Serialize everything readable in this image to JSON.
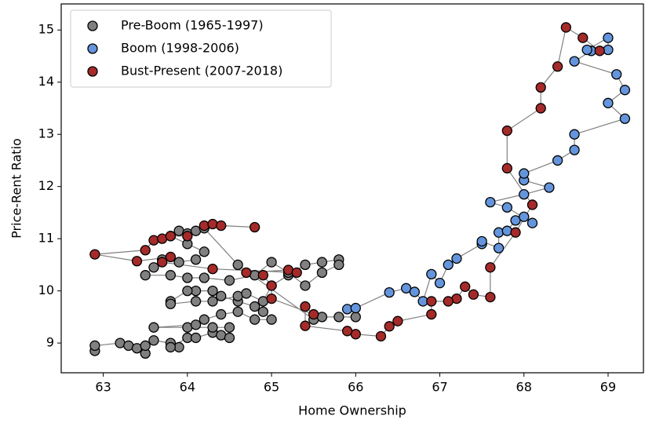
{
  "chart_data": {
    "type": "scatter",
    "connected": true,
    "line_color": "#808080",
    "xlabel": "Home Ownership",
    "ylabel": "Price-Rent Ratio",
    "xlim": [
      62.5,
      69.42
    ],
    "ylim": [
      8.43,
      15.5
    ],
    "xticks": [
      63,
      64,
      65,
      66,
      67,
      68,
      69
    ],
    "yticks": [
      9,
      10,
      11,
      12,
      13,
      14,
      15
    ],
    "legend": "upper left",
    "series": [
      {
        "name": "Pre-Boom (1965-1997)",
        "color": "#808080",
        "x": [
          62.9,
          62.9,
          63.2,
          63.3,
          63.4,
          63.5,
          63.5,
          63.6,
          63.8,
          63.9,
          63.8,
          64.0,
          64.1,
          64.3,
          64.4,
          64.5,
          64.5,
          64.3,
          64.0,
          63.6,
          64.1,
          64.2,
          64.4,
          64.6,
          64.8,
          65.0,
          64.9,
          64.8,
          64.6,
          64.4,
          64.3,
          64.1,
          64.0,
          63.8,
          63.8,
          64.1,
          64.3,
          64.6,
          64.7,
          64.9,
          65.0,
          65.2,
          65.4,
          65.6,
          65.8,
          65.8,
          65.6,
          65.4,
          65.2,
          65.0,
          64.8,
          64.5,
          64.2,
          64.0,
          63.8,
          63.5,
          63.6,
          63.7,
          63.9,
          64.1,
          64.2,
          64.0,
          63.8,
          63.9,
          64.0,
          64.1,
          64.2,
          64.6,
          65.5,
          65.6,
          65.8,
          66.0
        ],
        "values": [
          8.85,
          8.95,
          9.0,
          8.95,
          8.9,
          8.8,
          8.95,
          9.05,
          9.0,
          8.92,
          8.92,
          9.1,
          9.1,
          9.2,
          9.15,
          9.1,
          9.3,
          9.3,
          9.3,
          9.3,
          9.35,
          9.45,
          9.55,
          9.6,
          9.45,
          9.45,
          9.6,
          9.7,
          9.8,
          9.9,
          10.0,
          10.0,
          10.0,
          9.8,
          9.75,
          9.8,
          9.8,
          9.9,
          9.95,
          9.8,
          10.1,
          10.3,
          10.5,
          10.55,
          10.6,
          10.5,
          10.35,
          10.1,
          10.35,
          10.55,
          10.3,
          10.2,
          10.25,
          10.25,
          10.3,
          10.3,
          10.45,
          10.6,
          10.55,
          10.6,
          10.75,
          10.9,
          11.05,
          11.15,
          11.1,
          11.15,
          11.2,
          10.5,
          9.45,
          9.5,
          9.5,
          9.5
        ]
      },
      {
        "name": "Boom (1998-2006)",
        "color": "#6495dc",
        "x": [
          65.9,
          66.0,
          66.4,
          66.6,
          66.7,
          66.8,
          66.9,
          67.0,
          67.1,
          67.2,
          67.5,
          67.5,
          67.7,
          67.7,
          67.8,
          67.9,
          68.0,
          68.1,
          67.8,
          67.6,
          68.0,
          68.3,
          68.0,
          68.0,
          68.4,
          68.6,
          68.6,
          69.2,
          69.0,
          69.2,
          69.1,
          68.6,
          68.8,
          68.75,
          69.0,
          69.0
        ],
        "values": [
          9.65,
          9.67,
          9.97,
          10.05,
          9.98,
          9.8,
          10.32,
          10.15,
          10.5,
          10.62,
          10.9,
          10.95,
          10.82,
          11.12,
          11.15,
          11.35,
          11.42,
          11.3,
          11.6,
          11.7,
          11.85,
          11.98,
          12.12,
          12.25,
          12.5,
          12.7,
          13.0,
          13.3,
          13.6,
          13.85,
          14.15,
          14.4,
          14.6,
          14.62,
          14.85,
          14.62
        ]
      },
      {
        "name": "Bust-Present (2007-2018)",
        "color": "#a52a2a",
        "x": [
          68.9,
          68.7,
          68.5,
          68.4,
          68.2,
          68.2,
          67.8,
          67.8,
          68.1,
          67.9,
          67.6,
          67.6,
          67.4,
          67.3,
          67.2,
          67.1,
          66.9,
          66.9,
          66.5,
          66.4,
          66.3,
          66.0,
          65.9,
          65.4,
          65.4,
          65.5,
          65.0,
          65.0,
          64.9,
          64.7,
          65.2,
          65.3,
          64.3,
          63.7,
          63.8,
          63.4,
          62.9,
          63.5,
          63.6,
          63.7,
          63.8,
          64.0,
          64.2,
          64.3,
          64.4,
          64.8
        ],
        "values": [
          14.6,
          14.85,
          15.05,
          14.3,
          13.9,
          13.5,
          13.07,
          12.35,
          11.65,
          11.12,
          10.45,
          9.88,
          9.93,
          10.08,
          9.85,
          9.8,
          9.8,
          9.55,
          9.42,
          9.32,
          9.13,
          9.17,
          9.23,
          9.33,
          9.7,
          9.55,
          9.85,
          10.1,
          10.3,
          10.35,
          10.4,
          10.35,
          10.42,
          10.55,
          10.65,
          10.57,
          10.7,
          10.78,
          10.97,
          11.0,
          11.05,
          11.05,
          11.25,
          11.28,
          11.25,
          11.22
        ]
      }
    ]
  }
}
